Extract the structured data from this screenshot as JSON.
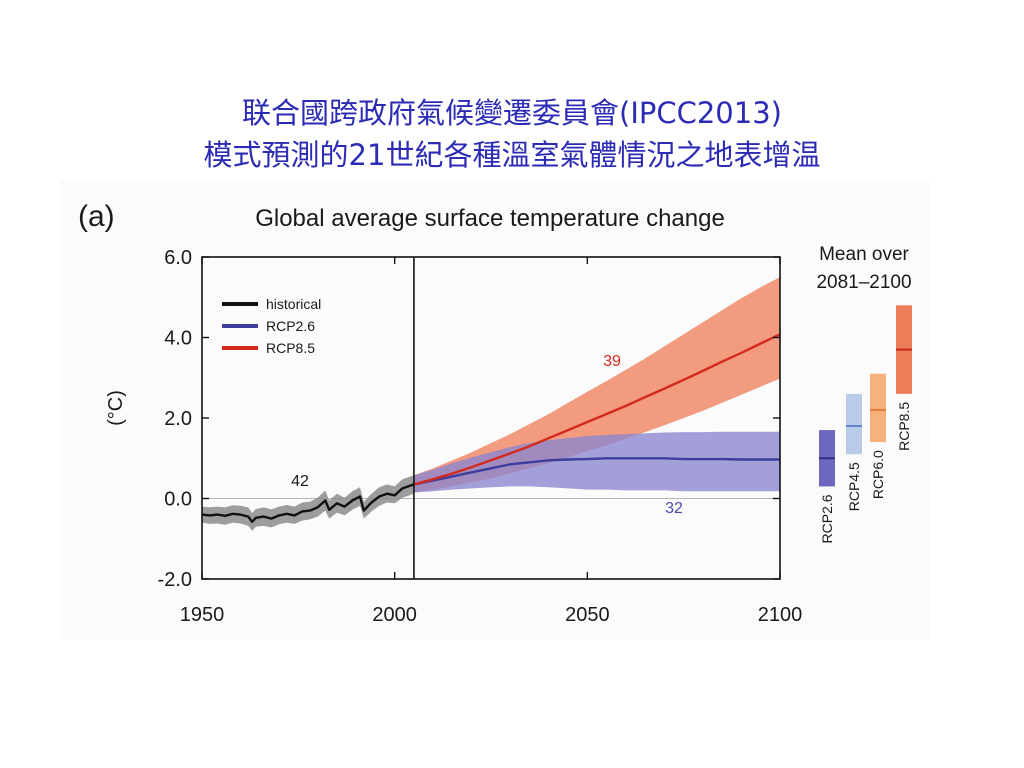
{
  "slide": {
    "title_line1": "联合國跨政府氣候變遷委員會(IPCC2013)",
    "title_line2": "模式預測的21世紀各種溫室氣體情況之地表增温"
  },
  "chart_data": {
    "type": "line",
    "panel_label": "(a)",
    "title": "Global average surface temperature change",
    "ylabel": "(°C)",
    "xlim": [
      1950,
      2100
    ],
    "ylim": [
      -2.0,
      6.0
    ],
    "xticks": [
      1950,
      2000,
      2050,
      2100
    ],
    "xtick_labels": [
      "1950",
      "2000",
      "2050",
      "2100"
    ],
    "yticks": [
      -2.0,
      0.0,
      2.0,
      4.0,
      6.0
    ],
    "ytick_labels": [
      "-2.0",
      "0.0",
      "2.0",
      "4.0",
      "6.0"
    ],
    "divider_year": 2005,
    "legend_position": "top-left",
    "series": [
      {
        "name": "historical",
        "color": "#111111",
        "band_color": "#8c8c8c",
        "model_count": "42",
        "x": [
          1950,
          1952,
          1954,
          1956,
          1958,
          1960,
          1962,
          1963,
          1964,
          1966,
          1968,
          1970,
          1972,
          1974,
          1976,
          1978,
          1980,
          1982,
          1983,
          1985,
          1987,
          1989,
          1991,
          1992,
          1994,
          1996,
          1998,
          2000,
          2002,
          2005
        ],
        "y": [
          -0.4,
          -0.42,
          -0.4,
          -0.43,
          -0.38,
          -0.4,
          -0.45,
          -0.58,
          -0.48,
          -0.45,
          -0.5,
          -0.42,
          -0.38,
          -0.42,
          -0.32,
          -0.3,
          -0.22,
          -0.05,
          -0.28,
          -0.12,
          -0.2,
          -0.05,
          0.05,
          -0.3,
          -0.1,
          0.05,
          0.12,
          0.08,
          0.25,
          0.35
        ],
        "lower": [
          -0.6,
          -0.63,
          -0.62,
          -0.65,
          -0.6,
          -0.62,
          -0.68,
          -0.8,
          -0.7,
          -0.68,
          -0.72,
          -0.64,
          -0.6,
          -0.63,
          -0.55,
          -0.52,
          -0.45,
          -0.3,
          -0.5,
          -0.35,
          -0.42,
          -0.28,
          -0.18,
          -0.5,
          -0.32,
          -0.18,
          -0.1,
          -0.12,
          0.02,
          0.12
        ],
        "upper": [
          -0.2,
          -0.22,
          -0.2,
          -0.22,
          -0.17,
          -0.18,
          -0.22,
          -0.36,
          -0.26,
          -0.22,
          -0.27,
          -0.2,
          -0.16,
          -0.2,
          -0.1,
          -0.08,
          0.02,
          0.2,
          -0.05,
          0.12,
          0.02,
          0.18,
          0.28,
          -0.08,
          0.12,
          0.28,
          0.35,
          0.3,
          0.48,
          0.58
        ]
      },
      {
        "name": "RCP2.6",
        "color": "#3d3d9e",
        "band_color": "#8a86d0",
        "model_count": "32",
        "x": [
          2005,
          2010,
          2015,
          2020,
          2025,
          2030,
          2035,
          2040,
          2045,
          2050,
          2055,
          2060,
          2065,
          2070,
          2075,
          2080,
          2085,
          2090,
          2095,
          2100
        ],
        "y": [
          0.35,
          0.45,
          0.55,
          0.65,
          0.75,
          0.85,
          0.9,
          0.95,
          0.97,
          0.98,
          1.0,
          1.0,
          1.0,
          1.0,
          0.98,
          0.98,
          0.98,
          0.97,
          0.97,
          0.97
        ],
        "lower": [
          0.15,
          0.18,
          0.22,
          0.25,
          0.28,
          0.3,
          0.3,
          0.28,
          0.25,
          0.22,
          0.22,
          0.2,
          0.2,
          0.2,
          0.18,
          0.18,
          0.18,
          0.18,
          0.18,
          0.18
        ],
        "upper": [
          0.58,
          0.72,
          0.88,
          1.02,
          1.15,
          1.28,
          1.38,
          1.45,
          1.5,
          1.55,
          1.58,
          1.6,
          1.62,
          1.64,
          1.65,
          1.65,
          1.66,
          1.66,
          1.66,
          1.66
        ]
      },
      {
        "name": "RCP8.5",
        "color": "#d42a1c",
        "band_color": "#f0805c",
        "model_count": "39",
        "x": [
          2005,
          2010,
          2015,
          2020,
          2025,
          2030,
          2035,
          2040,
          2045,
          2050,
          2055,
          2060,
          2065,
          2070,
          2075,
          2080,
          2085,
          2090,
          2095,
          2100
        ],
        "y": [
          0.35,
          0.48,
          0.62,
          0.78,
          0.95,
          1.12,
          1.3,
          1.5,
          1.7,
          1.9,
          2.1,
          2.3,
          2.52,
          2.73,
          2.95,
          3.17,
          3.4,
          3.62,
          3.85,
          4.08
        ],
        "lower": [
          0.15,
          0.22,
          0.3,
          0.4,
          0.5,
          0.62,
          0.75,
          0.88,
          1.02,
          1.18,
          1.32,
          1.48,
          1.65,
          1.82,
          2.0,
          2.18,
          2.38,
          2.58,
          2.78,
          2.98
        ],
        "upper": [
          0.58,
          0.75,
          0.95,
          1.15,
          1.38,
          1.6,
          1.85,
          2.1,
          2.38,
          2.65,
          2.92,
          3.2,
          3.48,
          3.78,
          4.08,
          4.38,
          4.68,
          4.98,
          5.25,
          5.5
        ]
      }
    ],
    "side_panel": {
      "title_line1": "Mean over",
      "title_line2": "2081–2100",
      "bars": [
        {
          "name": "RCP2.6",
          "mean": 1.0,
          "low": 0.3,
          "high": 1.7,
          "color": "#6d67bd",
          "line_color": "#2f2f8a"
        },
        {
          "name": "RCP4.5",
          "mean": 1.8,
          "low": 1.1,
          "high": 2.6,
          "color": "#b9cbe9",
          "line_color": "#5e86c8"
        },
        {
          "name": "RCP6.0",
          "mean": 2.2,
          "low": 1.4,
          "high": 3.1,
          "color": "#f7b27c",
          "line_color": "#e07b3a"
        },
        {
          "name": "RCP8.5",
          "mean": 3.7,
          "low": 2.6,
          "high": 4.8,
          "color": "#ee7d5a",
          "line_color": "#c5281a"
        }
      ]
    }
  }
}
